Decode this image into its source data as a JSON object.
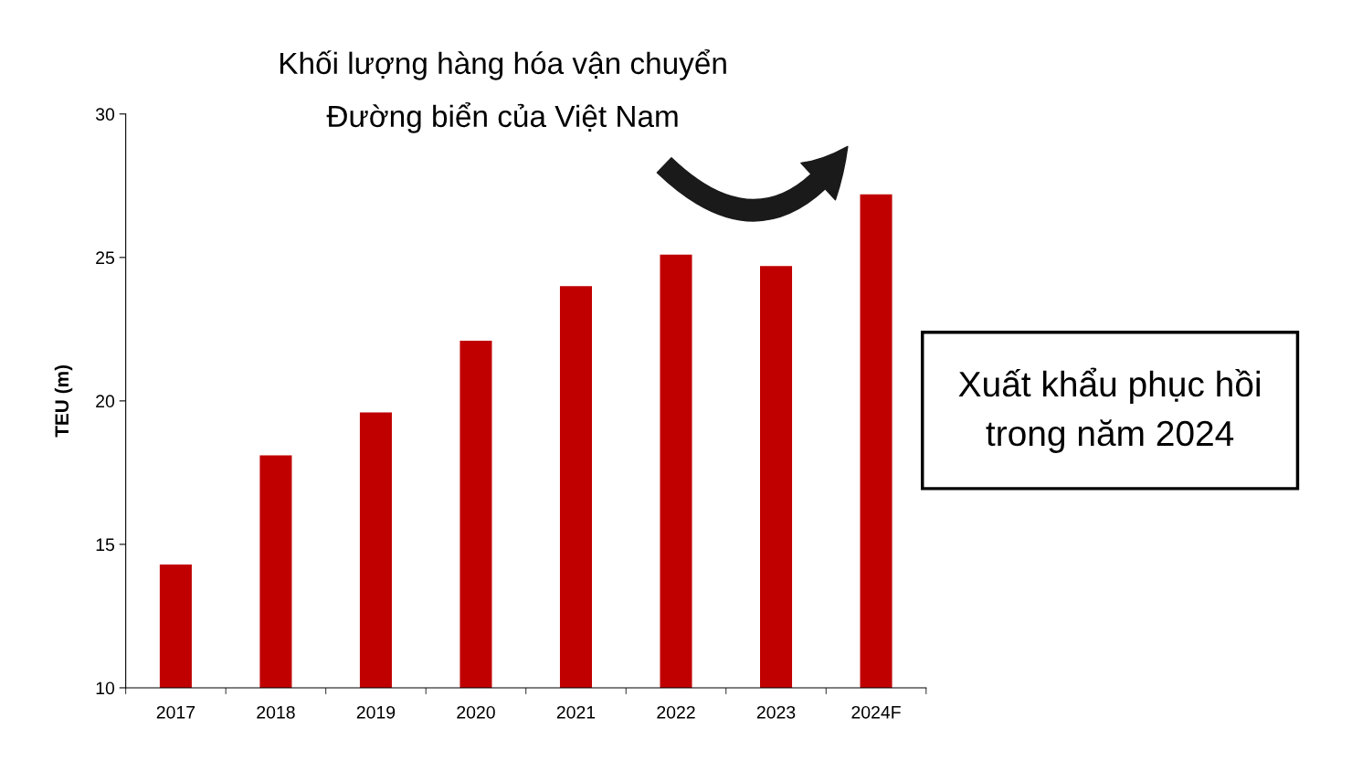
{
  "chart_data": {
    "type": "bar",
    "title": "Khối lượng hàng hóa vận chuyển\nĐường biển của Việt Nam",
    "ylabel": "TEU (m)",
    "categories": [
      "2017",
      "2018",
      "2019",
      "2020",
      "2021",
      "2022",
      "2023",
      "2024F"
    ],
    "values": [
      14.3,
      18.1,
      19.6,
      22.1,
      24.0,
      25.1,
      24.7,
      27.2
    ],
    "color": "#c00000",
    "ylim": [
      10,
      30
    ],
    "yticks": [
      10,
      15,
      20,
      25,
      30
    ],
    "grid": false,
    "legend": false,
    "annotations": [
      "Xuất khẩu phục hồi\ntrong năm 2024"
    ]
  }
}
